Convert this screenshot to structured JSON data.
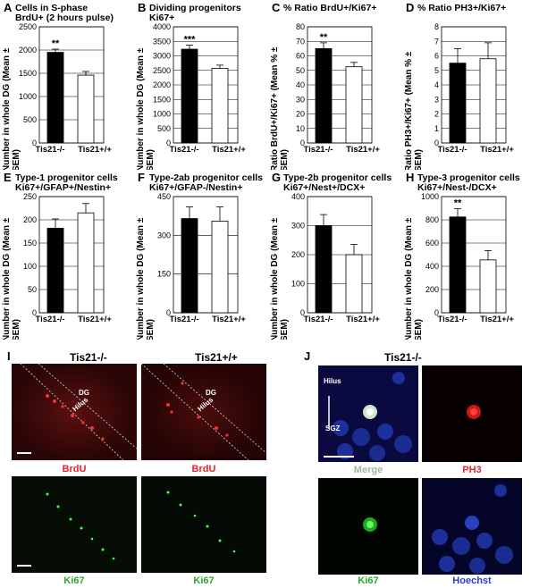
{
  "panels": [
    {
      "letter": "A",
      "title1": "Cells in S-phase",
      "title2": "BrdU+ (2 hours pulse)",
      "ylabel1": "Number in whole DG (Mean ±",
      "ylabel2": "SEM)"
    },
    {
      "letter": "B",
      "title1": "Dividing progenitors",
      "title2": "Ki67+",
      "ylabel1": "Number in whole DG (Mean ±",
      "ylabel2": "SEM)"
    },
    {
      "letter": "C",
      "title1": "% Ratio BrdU+/Ki67+",
      "title2": "",
      "ylabel1": "Ratio BrdU+/Ki67+ (Mean % ±",
      "ylabel2": "SEM)"
    },
    {
      "letter": "D",
      "title1": "% Ratio PH3+/Ki67+",
      "title2": "",
      "ylabel1": "Ratio PH3+/Ki67+ (Mean % ±",
      "ylabel2": "SEM)"
    },
    {
      "letter": "E",
      "title1": "Type-1  progenitor cells",
      "title2": "Ki67+/GFAP+/Nestin+",
      "ylabel1": "Number in whole DG (Mean ±",
      "ylabel2": "SEM)"
    },
    {
      "letter": "F",
      "title1": "Type-2ab  progenitor cells",
      "title2": "Ki67+/GFAP-/Nestin+",
      "ylabel1": "Number in whole DG (Mean ±",
      "ylabel2": "SEM)"
    },
    {
      "letter": "G",
      "title1": "Type-2b  progenitor cells",
      "title2": "Ki67+/Nest+/DCX+",
      "ylabel1": "Number in whole DG (Mean ±",
      "ylabel2": "SEM)"
    },
    {
      "letter": "H",
      "title1": "Type-3  progenitor cells",
      "title2": "Ki67+/Nest-/DCX+",
      "ylabel1": "Number in whole DG (Mean ±",
      "ylabel2": "SEM)"
    }
  ],
  "chart_data": [
    {
      "type": "bar",
      "categories": [
        "Tis21-/-",
        "Tis21+/+"
      ],
      "values": [
        1950,
        1460
      ],
      "errors": [
        70,
        80
      ],
      "ylim": [
        0,
        2500
      ],
      "ticks": [
        0,
        500,
        1000,
        1500,
        2000,
        2500
      ],
      "significance": [
        "**",
        ""
      ]
    },
    {
      "type": "bar",
      "categories": [
        "Tis21-/-",
        "Tis21+/+"
      ],
      "values": [
        3230,
        2570
      ],
      "errors": [
        140,
        110
      ],
      "ylim": [
        0,
        4000
      ],
      "ticks": [
        0,
        500,
        1000,
        1500,
        2000,
        2500,
        3000,
        3500,
        4000
      ],
      "significance": [
        "***",
        ""
      ]
    },
    {
      "type": "bar",
      "categories": [
        "Tis21-/-",
        "Tis21+/+"
      ],
      "values": [
        65,
        52.5
      ],
      "errors": [
        4,
        3
      ],
      "ylim": [
        0,
        80
      ],
      "ticks": [
        0,
        10,
        20,
        30,
        40,
        50,
        60,
        70,
        80
      ],
      "significance": [
        "**",
        ""
      ]
    },
    {
      "type": "bar",
      "categories": [
        "Tis21-/-",
        "Tis21+/+"
      ],
      "values": [
        5.5,
        5.8
      ],
      "errors": [
        1,
        1.1
      ],
      "ylim": [
        0,
        8
      ],
      "ticks": [
        0,
        1,
        2,
        3,
        4,
        5,
        6,
        7,
        8
      ],
      "significance": [
        "",
        ""
      ]
    },
    {
      "type": "bar",
      "categories": [
        "Tis21-/-",
        "Tis21+/+"
      ],
      "values": [
        182,
        215
      ],
      "errors": [
        20,
        20
      ],
      "ylim": [
        0,
        250
      ],
      "ticks": [
        0,
        50,
        100,
        150,
        200,
        250
      ],
      "significance": [
        "",
        ""
      ]
    },
    {
      "type": "bar",
      "categories": [
        "Tis21-/-",
        "Tis21+/+"
      ],
      "values": [
        365,
        355
      ],
      "errors": [
        45,
        55
      ],
      "ylim": [
        0,
        450
      ],
      "ticks": [
        0,
        150,
        300,
        450
      ],
      "significance": [
        "",
        ""
      ]
    },
    {
      "type": "bar",
      "categories": [
        "Tis21-/-",
        "Tis21+/+"
      ],
      "values": [
        300,
        200
      ],
      "errors": [
        38,
        35
      ],
      "ylim": [
        0,
        400
      ],
      "ticks": [
        0,
        100,
        200,
        300,
        400
      ],
      "significance": [
        "",
        ""
      ]
    },
    {
      "type": "bar",
      "categories": [
        "Tis21-/-",
        "Tis21+/+"
      ],
      "values": [
        825,
        455
      ],
      "errors": [
        70,
        80
      ],
      "ylim": [
        0,
        1000
      ],
      "ticks": [
        0,
        200,
        400,
        600,
        800,
        1000
      ],
      "significance": [
        "**",
        ""
      ]
    }
  ],
  "figure_I": {
    "letter": "I",
    "col1": "Tis21-/-",
    "col2": "Tis21+/+",
    "dg": "DG",
    "hilus": "Hilus",
    "brdu": "BrdU",
    "ki67": "Ki67"
  },
  "figure_J": {
    "letter": "J",
    "title": "Tis21-/-",
    "hilus": "Hilus",
    "sgz": "SGZ",
    "merge": "Merge",
    "ph3": "PH3",
    "ki67": "Ki67",
    "hoechst": "Hoechst"
  },
  "colors": {
    "bar_mutant": "#000000",
    "bar_wt": "#ffffff",
    "brdu": "#e8222f",
    "ph3": "#e8222f",
    "ki67": "#2aa832",
    "merge": "#9bb9a3",
    "hoechst": "#2a3ccf"
  }
}
